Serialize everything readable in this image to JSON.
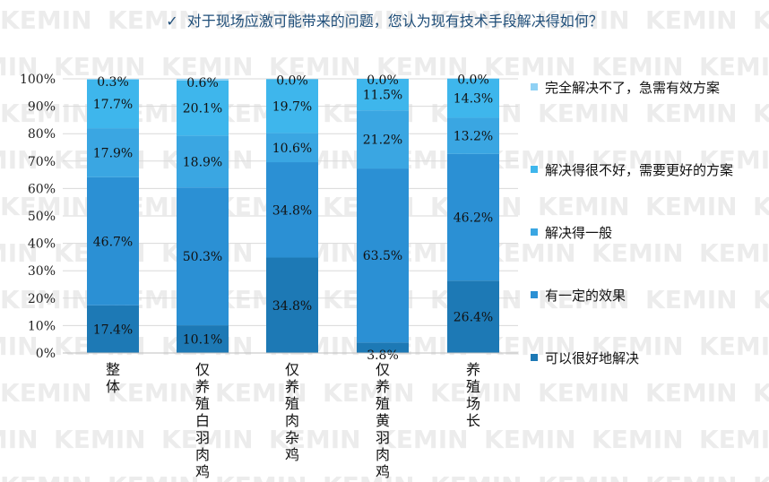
{
  "title": {
    "check_icon": "✓",
    "text": "对于现场应激可能带来的问题，您认为现有技术手段解决得如何？"
  },
  "watermark_text": "KEMIN",
  "chart_data": {
    "type": "bar",
    "stacked": true,
    "title": "对于现场应激可能带来的问题，您认为现有技术手段解决得如何？",
    "categories": [
      "整体",
      "仅养殖白羽肉鸡",
      "仅养殖肉杂鸡",
      "仅养殖黄羽肉鸡",
      "养殖场长"
    ],
    "ylim": [
      0,
      100
    ],
    "y_ticks": [
      "0%",
      "10%",
      "20%",
      "30%",
      "40%",
      "50%",
      "60%",
      "70%",
      "80%",
      "90%",
      "100%"
    ],
    "grid": true,
    "legend_position": "right",
    "series": [
      {
        "name": "可以很好地解决",
        "color": "#1d79b5",
        "values": [
          17.4,
          10.1,
          34.8,
          3.8,
          26.4
        ],
        "labels": [
          "17.4%",
          "10.1%",
          "34.8%",
          "3.8%",
          "26.4%"
        ]
      },
      {
        "name": "有一定的效果",
        "color": "#2b90d4",
        "values": [
          46.7,
          50.3,
          34.8,
          63.5,
          46.2
        ],
        "labels": [
          "46.7%",
          "50.3%",
          "34.8%",
          "63.5%",
          "46.2%"
        ]
      },
      {
        "name": "解决得一般",
        "color": "#3aa6e2",
        "values": [
          17.9,
          18.9,
          10.6,
          21.2,
          13.2
        ],
        "labels": [
          "17.9%",
          "18.9%",
          "10.6%",
          "21.2%",
          "13.2%"
        ]
      },
      {
        "name": "解决得很不好，需要更好的方案",
        "color": "#3eb6ec",
        "values": [
          17.7,
          20.1,
          19.7,
          11.5,
          14.3
        ],
        "labels": [
          "17.7%",
          "20.1%",
          "19.7%",
          "11.5%",
          "14.3%"
        ]
      },
      {
        "name": "完全解决不了，急需有效方案",
        "color": "#8fd1f4",
        "values": [
          0.3,
          0.6,
          0.0,
          0.0,
          0.0
        ],
        "labels": [
          "0.3%",
          "0.6%",
          "0.0%",
          "0.0%",
          "0.0%"
        ]
      }
    ]
  }
}
